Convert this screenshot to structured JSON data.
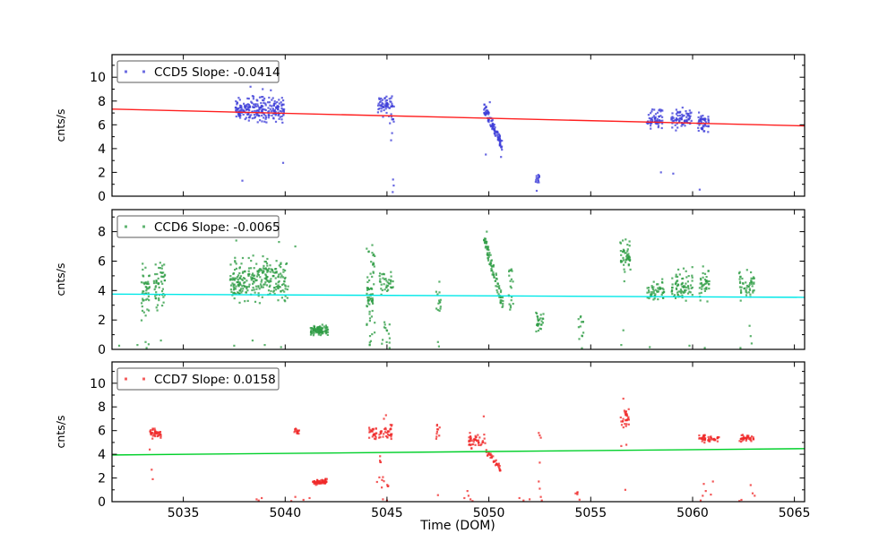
{
  "figure": {
    "background": "#ffffff",
    "xlabel": "Time (DOM)",
    "xlim": [
      5031.5,
      5065.5
    ],
    "x_ticks": [
      5035,
      5040,
      5045,
      5050,
      5055,
      5060,
      5065
    ],
    "grid": false,
    "legend_position": "upper left"
  },
  "chart_data": [
    {
      "type": "scatter",
      "id": "ccd5",
      "legend_label": "CCD5 Slope: -0.0414",
      "slope": -0.0414,
      "ylabel": "cnts/s",
      "ylim": [
        0,
        11.9
      ],
      "yticks": [
        0,
        2,
        4,
        6,
        8,
        10
      ],
      "point_color": "#3d3dd8",
      "trend": {
        "color": "#ff1f1f",
        "y_ends": [
          7.32,
          5.91
        ]
      },
      "clusters": [
        {
          "shape": "blob",
          "t": [
            5037.55,
            5039.95
          ],
          "v": [
            5.8,
            8.8
          ],
          "n": 230
        },
        {
          "shape": "pts",
          "pts": [
            [
              5038.3,
              9.2
            ],
            [
              5038.9,
              9.0
            ],
            [
              5039.3,
              8.9
            ],
            [
              5039.9,
              2.8
            ],
            [
              5037.9,
              1.3
            ]
          ]
        },
        {
          "shape": "blob",
          "t": [
            5044.55,
            5045.05
          ],
          "v": [
            6.3,
            8.9
          ],
          "n": 42
        },
        {
          "shape": "streak",
          "t": [
            5045.05,
            5045.35
          ],
          "v": [
            6.0,
            8.4
          ],
          "n": 22
        },
        {
          "shape": "pts",
          "pts": [
            [
              5045.2,
              4.7
            ],
            [
              5045.25,
              5.3
            ],
            [
              5045.3,
              1.4
            ],
            [
              5045.33,
              0.9
            ],
            [
              5045.28,
              0.35
            ]
          ]
        },
        {
          "shape": "trail",
          "t": [
            5049.75,
            5050.65
          ],
          "v": [
            7.5,
            4.3
          ],
          "jitter": 0.45,
          "n": 95
        },
        {
          "shape": "pts",
          "pts": [
            [
              5049.85,
              3.5
            ],
            [
              5050.6,
              3.3
            ],
            [
              5050.05,
              7.9
            ]
          ]
        },
        {
          "shape": "blob",
          "t": [
            5052.3,
            5052.5
          ],
          "v": [
            1.0,
            1.9
          ],
          "n": 14
        },
        {
          "shape": "pts",
          "pts": [
            [
              5052.35,
              0.45
            ]
          ]
        },
        {
          "shape": "blob",
          "t": [
            5057.75,
            5058.55
          ],
          "v": [
            5.4,
            7.6
          ],
          "n": 60
        },
        {
          "shape": "blob",
          "t": [
            5058.95,
            5059.95
          ],
          "v": [
            5.4,
            7.7
          ],
          "n": 75
        },
        {
          "shape": "blob",
          "t": [
            5060.25,
            5060.8
          ],
          "v": [
            4.9,
            7.5
          ],
          "n": 50
        },
        {
          "shape": "pts",
          "pts": [
            [
              5058.45,
              2.0
            ],
            [
              5059.05,
              1.9
            ],
            [
              5060.35,
              0.55
            ]
          ]
        }
      ]
    },
    {
      "type": "scatter",
      "id": "ccd6",
      "legend_label": "CCD6 Slope: -0.0065",
      "slope": -0.0065,
      "ylabel": "cnts/s",
      "ylim": [
        0,
        9.5
      ],
      "yticks": [
        0,
        2,
        4,
        6,
        8
      ],
      "point_color": "#2e9c44",
      "trend": {
        "color": "#00e8e8",
        "y_ends": [
          3.76,
          3.54
        ]
      },
      "clusters": [
        {
          "shape": "blob",
          "t": [
            5032.95,
            5033.35
          ],
          "v": [
            1.2,
            6.6
          ],
          "n": 45
        },
        {
          "shape": "blob",
          "t": [
            5033.55,
            5034.15
          ],
          "v": [
            1.5,
            7.2
          ],
          "n": 55
        },
        {
          "shape": "pts",
          "pts": [
            [
              5033.15,
              0.5
            ],
            [
              5033.3,
              0.35
            ],
            [
              5032.75,
              0.3
            ],
            [
              5033.9,
              0.6
            ],
            [
              5031.85,
              0.25
            ],
            [
              5033.2,
              0.1
            ]
          ]
        },
        {
          "shape": "blob",
          "t": [
            5037.3,
            5040.15
          ],
          "v": [
            2.6,
            6.8
          ],
          "n": 270
        },
        {
          "shape": "pts",
          "pts": [
            [
              5037.6,
              7.4
            ],
            [
              5039.7,
              7.3
            ],
            [
              5038.4,
              0.6
            ],
            [
              5039.0,
              0.3
            ],
            [
              5039.8,
              0.15
            ],
            [
              5037.5,
              0.25
            ],
            [
              5040.5,
              7.0
            ]
          ]
        },
        {
          "shape": "blob",
          "t": [
            5041.25,
            5042.1
          ],
          "v": [
            0.85,
            1.75
          ],
          "n": 95
        },
        {
          "shape": "streak",
          "t": [
            5044.0,
            5044.4
          ],
          "v": [
            0.0,
            7.4
          ],
          "n": 45
        },
        {
          "shape": "blob",
          "t": [
            5044.0,
            5044.35
          ],
          "v": [
            2.2,
            5.0
          ],
          "n": 28
        },
        {
          "shape": "blob",
          "t": [
            5044.6,
            5045.3
          ],
          "v": [
            3.4,
            5.7
          ],
          "n": 38
        },
        {
          "shape": "streak",
          "t": [
            5044.75,
            5045.2
          ],
          "v": [
            0.0,
            2.0
          ],
          "n": 14
        },
        {
          "shape": "streak",
          "t": [
            5047.4,
            5047.65
          ],
          "v": [
            2.6,
            4.6
          ],
          "n": 14
        },
        {
          "shape": "pts",
          "pts": [
            [
              5047.5,
              0.5
            ],
            [
              5047.55,
              0.2
            ]
          ]
        },
        {
          "shape": "trail",
          "t": [
            5049.75,
            5050.7
          ],
          "v": [
            7.6,
            3.0
          ],
          "jitter": 0.5,
          "n": 85
        },
        {
          "shape": "pts",
          "pts": [
            [
              5049.9,
              8.0
            ]
          ]
        },
        {
          "shape": "streak",
          "t": [
            5050.95,
            5051.2
          ],
          "v": [
            2.7,
            5.7
          ],
          "n": 20
        },
        {
          "shape": "blob",
          "t": [
            5052.3,
            5052.7
          ],
          "v": [
            0.9,
            2.9
          ],
          "n": 28
        },
        {
          "shape": "streak",
          "t": [
            5054.4,
            5054.65
          ],
          "v": [
            0.0,
            3.1
          ],
          "n": 13
        },
        {
          "shape": "blob",
          "t": [
            5056.45,
            5056.95
          ],
          "v": [
            4.4,
            8.0
          ],
          "n": 50
        },
        {
          "shape": "pts",
          "pts": [
            [
              5056.6,
              1.3
            ],
            [
              5056.5,
              0.3
            ]
          ]
        },
        {
          "shape": "blob",
          "t": [
            5057.75,
            5058.6
          ],
          "v": [
            2.8,
            5.0
          ],
          "n": 50
        },
        {
          "shape": "blob",
          "t": [
            5058.95,
            5060.0
          ],
          "v": [
            2.8,
            5.8
          ],
          "n": 75
        },
        {
          "shape": "blob",
          "t": [
            5060.3,
            5060.85
          ],
          "v": [
            3.1,
            6.0
          ],
          "n": 40
        },
        {
          "shape": "blob",
          "t": [
            5062.25,
            5063.05
          ],
          "v": [
            3.1,
            5.8
          ],
          "n": 50
        },
        {
          "shape": "pts",
          "pts": [
            [
              5062.8,
              1.6
            ],
            [
              5062.85,
              0.9
            ],
            [
              5062.9,
              0.4
            ],
            [
              5062.35,
              0.1
            ],
            [
              5059.85,
              0.25
            ],
            [
              5057.9,
              0.15
            ],
            [
              5060.6,
              0.1
            ]
          ]
        }
      ]
    },
    {
      "type": "scatter",
      "id": "ccd7",
      "legend_label": "CCD7 Slope: 0.0158",
      "slope": 0.0158,
      "ylabel": "cnts/s",
      "ylim": [
        0,
        11.8
      ],
      "yticks": [
        0,
        2,
        4,
        6,
        8,
        10
      ],
      "point_color": "#ef2929",
      "trend": {
        "color": "#00d02a",
        "y_ends": [
          3.94,
          4.48
        ]
      },
      "clusters": [
        {
          "shape": "blob",
          "t": [
            5033.35,
            5033.95
          ],
          "v": [
            5.2,
            6.4
          ],
          "n": 40
        },
        {
          "shape": "pts",
          "pts": [
            [
              5033.45,
              2.7
            ],
            [
              5033.5,
              1.9
            ],
            [
              5033.35,
              4.4
            ]
          ]
        },
        {
          "shape": "pts",
          "pts": [
            [
              5038.6,
              0.2
            ],
            [
              5038.7,
              0.1
            ],
            [
              5038.85,
              0.3
            ]
          ]
        },
        {
          "shape": "blob",
          "t": [
            5040.45,
            5040.7
          ],
          "v": [
            5.5,
            6.4
          ],
          "n": 14
        },
        {
          "shape": "blob",
          "t": [
            5041.35,
            5042.05
          ],
          "v": [
            1.35,
            2.0
          ],
          "n": 65
        },
        {
          "shape": "pts",
          "pts": [
            [
              5040.5,
              0.4
            ],
            [
              5040.9,
              0.15
            ],
            [
              5041.2,
              0.3
            ],
            [
              5040.3,
              0.05
            ]
          ]
        },
        {
          "shape": "blob",
          "t": [
            5044.1,
            5044.5
          ],
          "v": [
            5.1,
            6.6
          ],
          "n": 25
        },
        {
          "shape": "blob",
          "t": [
            5044.6,
            5045.3
          ],
          "v": [
            5.0,
            6.7
          ],
          "n": 35
        },
        {
          "shape": "pts",
          "pts": [
            [
              5044.95,
              7.3
            ],
            [
              5044.85,
              7.0
            ]
          ]
        },
        {
          "shape": "streak",
          "t": [
            5044.65,
            5044.78
          ],
          "v": [
            3.3,
            4.0
          ],
          "n": 4
        },
        {
          "shape": "streak",
          "t": [
            5044.5,
            5045.15
          ],
          "v": [
            1.1,
            2.1
          ],
          "n": 9
        },
        {
          "shape": "pts",
          "pts": [
            [
              5044.8,
              0.2
            ],
            [
              5045.0,
              0.1
            ]
          ]
        },
        {
          "shape": "streak",
          "t": [
            5047.4,
            5047.6
          ],
          "v": [
            5.3,
            6.5
          ],
          "n": 10
        },
        {
          "shape": "pts",
          "pts": [
            [
              5047.5,
              0.55
            ]
          ]
        },
        {
          "shape": "blob",
          "t": [
            5049.0,
            5049.85
          ],
          "v": [
            4.3,
            6.0
          ],
          "n": 45
        },
        {
          "shape": "pts",
          "pts": [
            [
              5049.75,
              7.2
            ]
          ]
        },
        {
          "shape": "trail",
          "t": [
            5049.85,
            5050.6
          ],
          "v": [
            4.3,
            2.8
          ],
          "jitter": 0.3,
          "n": 35
        },
        {
          "shape": "pts",
          "pts": [
            [
              5048.95,
              0.9
            ],
            [
              5049.0,
              0.5
            ],
            [
              5049.1,
              0.2
            ],
            [
              5049.2,
              0.05
            ],
            [
              5048.8,
              0.3
            ]
          ]
        },
        {
          "shape": "pts",
          "pts": [
            [
              5052.45,
              5.8
            ],
            [
              5052.5,
              5.6
            ],
            [
              5052.55,
              5.4
            ],
            [
              5052.5,
              3.3
            ],
            [
              5052.45,
              1.7
            ],
            [
              5052.5,
              1.1
            ],
            [
              5052.55,
              0.4
            ],
            [
              5052.6,
              0.1
            ]
          ]
        },
        {
          "shape": "streak",
          "t": [
            5054.25,
            5054.5
          ],
          "v": [
            0.15,
            0.85
          ],
          "n": 5
        },
        {
          "shape": "blob",
          "t": [
            5056.45,
            5056.9
          ],
          "v": [
            5.8,
            8.2
          ],
          "n": 30
        },
        {
          "shape": "pts",
          "pts": [
            [
              5056.6,
              8.7
            ],
            [
              5056.75,
              4.8
            ],
            [
              5056.7,
              1.0
            ],
            [
              5056.5,
              4.7
            ]
          ]
        },
        {
          "shape": "blob",
          "t": [
            5060.3,
            5060.65
          ],
          "v": [
            4.9,
            5.8
          ],
          "n": 25
        },
        {
          "shape": "blob",
          "t": [
            5060.75,
            5061.3
          ],
          "v": [
            4.9,
            5.7
          ],
          "n": 25
        },
        {
          "shape": "pts",
          "pts": [
            [
              5060.55,
              1.5
            ],
            [
              5060.65,
              0.9
            ],
            [
              5060.5,
              0.5
            ],
            [
              5060.9,
              0.6
            ],
            [
              5061.0,
              1.7
            ],
            [
              5060.4,
              0.1
            ]
          ]
        },
        {
          "shape": "blob",
          "t": [
            5062.3,
            5063.0
          ],
          "v": [
            4.9,
            5.8
          ],
          "n": 40
        },
        {
          "shape": "pts",
          "pts": [
            [
              5062.85,
              1.4
            ],
            [
              5062.95,
              0.7
            ],
            [
              5062.4,
              0.15
            ],
            [
              5063.05,
              0.5
            ],
            [
              5062.3,
              0.05
            ],
            [
              5051.5,
              0.3
            ],
            [
              5051.7,
              0.1
            ],
            [
              5052.0,
              0.2
            ]
          ]
        }
      ]
    }
  ]
}
